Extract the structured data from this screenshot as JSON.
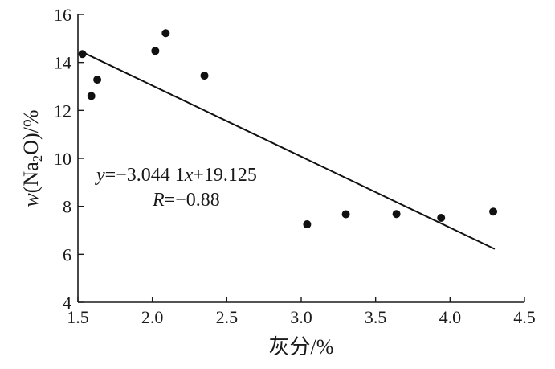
{
  "chart_data": {
    "type": "scatter",
    "title": "",
    "xlabel": "灰分/%",
    "ylabel_parts": {
      "pre": "w(Na",
      "sub": "2",
      "post": "O)/%"
    },
    "xlim": [
      1.5,
      4.5
    ],
    "ylim": [
      4,
      16
    ],
    "xticks": [
      "1.5",
      "2.0",
      "2.5",
      "3.0",
      "3.5",
      "4.0",
      "4.5"
    ],
    "yticks": [
      "4",
      "6",
      "8",
      "10",
      "12",
      "14",
      "16"
    ],
    "grid": false,
    "points": [
      {
        "x": 1.53,
        "y": 14.35
      },
      {
        "x": 1.59,
        "y": 12.6
      },
      {
        "x": 1.63,
        "y": 13.28
      },
      {
        "x": 2.02,
        "y": 14.48
      },
      {
        "x": 2.09,
        "y": 15.22
      },
      {
        "x": 2.35,
        "y": 13.45
      },
      {
        "x": 3.04,
        "y": 7.25
      },
      {
        "x": 3.3,
        "y": 7.67
      },
      {
        "x": 3.64,
        "y": 7.68
      },
      {
        "x": 3.94,
        "y": 7.52
      },
      {
        "x": 4.29,
        "y": 7.78
      }
    ],
    "fit_line": {
      "x": [
        1.53,
        4.3
      ],
      "y": [
        14.43,
        6.22
      ]
    },
    "annotations": {
      "equation": {
        "y": "y",
        "eq_mid": "=−3.044 1",
        "x": "x",
        "eq_end": "+19.125"
      },
      "r": {
        "r": "R",
        "value": "=−0.88"
      }
    }
  }
}
